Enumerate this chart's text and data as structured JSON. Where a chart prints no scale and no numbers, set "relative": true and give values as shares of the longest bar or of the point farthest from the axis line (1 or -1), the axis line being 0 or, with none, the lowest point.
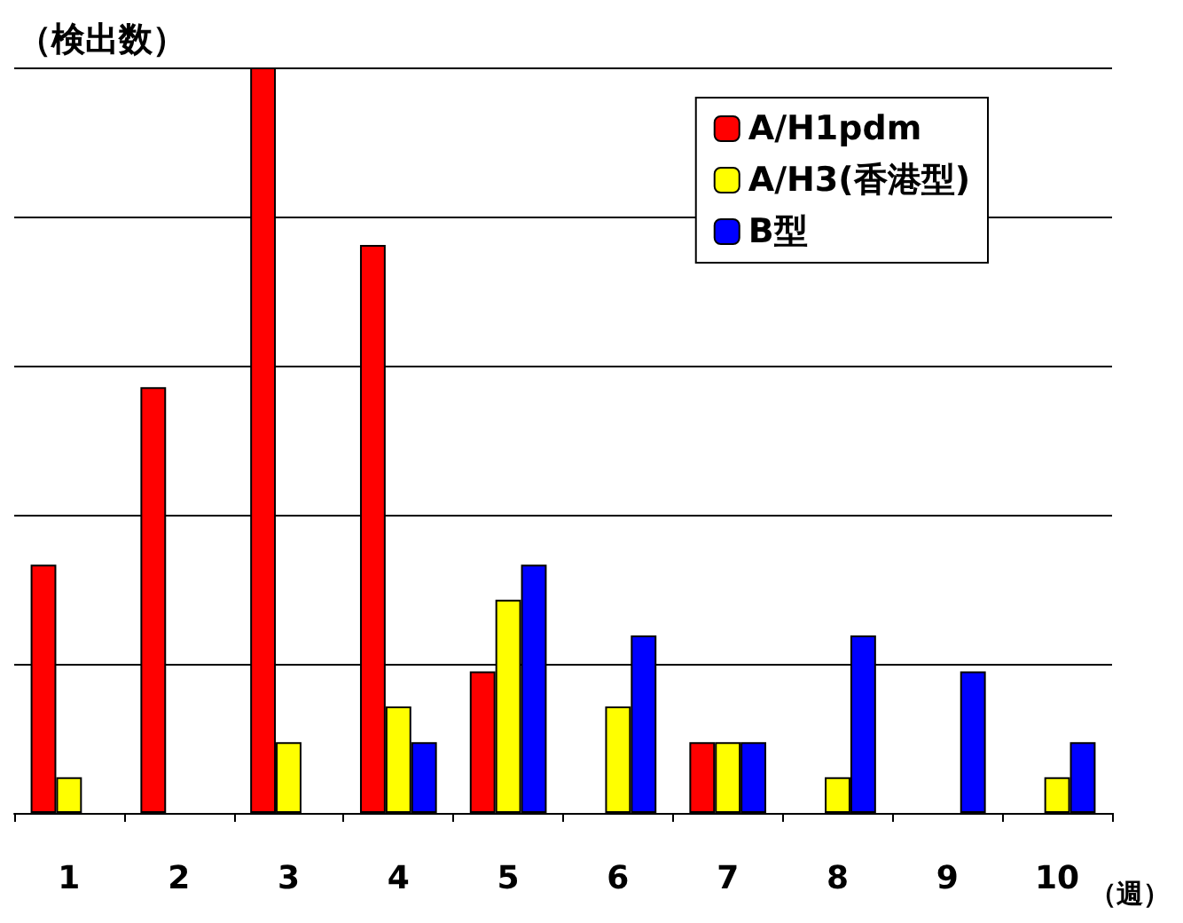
{
  "chart_data": {
    "type": "bar",
    "ylabel": "（検出数）",
    "xlabel": "（週）",
    "relative": true,
    "grid": "y",
    "legend": "top right",
    "categories": [
      "1",
      "2",
      "3",
      "4",
      "5",
      "6",
      "7",
      "8",
      "9",
      "10"
    ],
    "series": [
      {
        "name": "A/H1pdm",
        "color": "#ff0000",
        "values": [
          0.333,
          0.571,
          1,
          0.762,
          0.19,
          0,
          0.095,
          0,
          0,
          0
        ]
      },
      {
        "name": "A/H3(香港型)",
        "color": "#ffff00",
        "values": [
          0.048,
          0,
          0.095,
          0.143,
          0.286,
          0.143,
          0.095,
          0.048,
          0,
          0.048
        ]
      },
      {
        "name": "B型",
        "color": "#0000ff",
        "values": [
          0,
          0,
          0,
          0.095,
          0.333,
          0.238,
          0.095,
          0.238,
          0.19,
          0.095
        ]
      }
    ]
  }
}
